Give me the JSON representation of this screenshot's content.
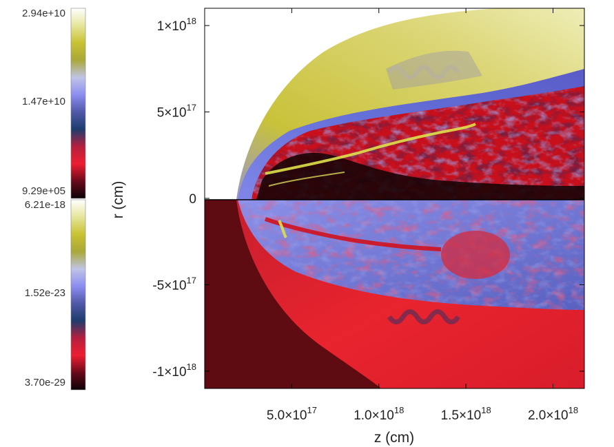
{
  "chart_data": {
    "type": "heatmap",
    "xlabel": "z (cm)",
    "ylabel": "r (cm)",
    "x_ticks": [
      {
        "value": 5e+17,
        "label_mant": "5.0×10",
        "label_exp": "17"
      },
      {
        "value": 1e+18,
        "label_mant": "1.0×10",
        "label_exp": "18"
      },
      {
        "value": 1.5e+18,
        "label_mant": "1.5×10",
        "label_exp": "18"
      },
      {
        "value": 2e+18,
        "label_mant": "2.0×10",
        "label_exp": "18"
      }
    ],
    "y_ticks": [
      {
        "value": 1e+18,
        "label_mant": "1×10",
        "label_exp": "18"
      },
      {
        "value": 5e+17,
        "label_mant": "5×10",
        "label_exp": "17"
      },
      {
        "value": 0,
        "label_mant": "0",
        "label_exp": ""
      },
      {
        "value": -5e+17,
        "label_mant": "-5×10",
        "label_exp": "17"
      },
      {
        "value": -1e+18,
        "label_mant": "-1×10",
        "label_exp": "18"
      }
    ],
    "xlim": [
      0,
      2.18e+18
    ],
    "ylim": [
      -1.1e+18,
      1.1e+18
    ],
    "colorbars": [
      {
        "panel": "upper half",
        "labels": [
          "2.94e+10",
          "1.47e+10",
          "9.29e+05"
        ],
        "max": 29400000000.0,
        "mid": 14700000000.0,
        "min": 929000.0,
        "colors": [
          "#0a0205",
          "#6a0a1a",
          "#ee1e32",
          "#b4203e",
          "#1e3c6e",
          "#5058a8",
          "#8c8ef0",
          "#c0c4e6",
          "#aaa838",
          "#c9c233",
          "#e6e59c",
          "#ffffff"
        ]
      },
      {
        "panel": "lower half",
        "labels": [
          "6.21e-18",
          "1.52e-23",
          "3.70e-29"
        ],
        "max": 6.21e-18,
        "mid": 1.52e-23,
        "min": 3.7e-29,
        "colors": [
          "#0a0205",
          "#6a0a1a",
          "#ee1e32",
          "#b4203e",
          "#1e3c6e",
          "#5058a8",
          "#8c8ef0",
          "#c0c4e6",
          "#aaa838",
          "#c9c233",
          "#e6e59c",
          "#ffffff"
        ]
      }
    ],
    "colors": {
      "ambient_top": "#ffffff",
      "ambient_bottom": "#5e0c12",
      "shell_top": "#d6d04a",
      "shell_bottom": "#e8242e",
      "interface": "#7d80e6",
      "jet_core": "#c7101c",
      "yellow_filament": "#dfe14a",
      "dark_core": "#160204",
      "deep_blue": "#2a3a88"
    }
  }
}
